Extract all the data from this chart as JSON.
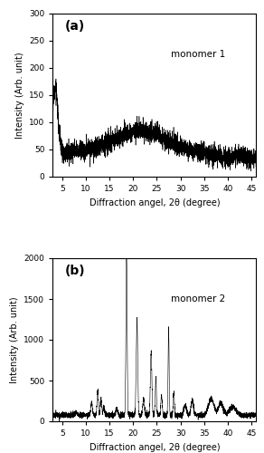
{
  "panel_a": {
    "label": "(a)",
    "annotation": "monomer 1",
    "xlabel": "Diffraction angel, 2θ (degree)",
    "ylabel": "Intensity (Arb. unit)",
    "xlim": [
      3,
      46
    ],
    "ylim": [
      0,
      300
    ],
    "yticks": [
      0,
      50,
      100,
      150,
      200,
      250,
      300
    ],
    "xticks": [
      5,
      10,
      15,
      20,
      25,
      30,
      35,
      40,
      45
    ]
  },
  "panel_b": {
    "label": "(b)",
    "annotation": "monomer 2",
    "xlabel": "Diffraction angel, 2θ (degree)",
    "ylabel": "Intensity (Arb. unit)",
    "xlim": [
      3,
      46
    ],
    "ylim": [
      0,
      2000
    ],
    "yticks": [
      0,
      500,
      1000,
      1500,
      2000
    ],
    "xticks": [
      5,
      10,
      15,
      20,
      25,
      30,
      35,
      40,
      45
    ]
  },
  "line_color": "#000000",
  "background_color": "#ffffff",
  "fig_width": 2.92,
  "fig_height": 5.0,
  "dpi": 100
}
